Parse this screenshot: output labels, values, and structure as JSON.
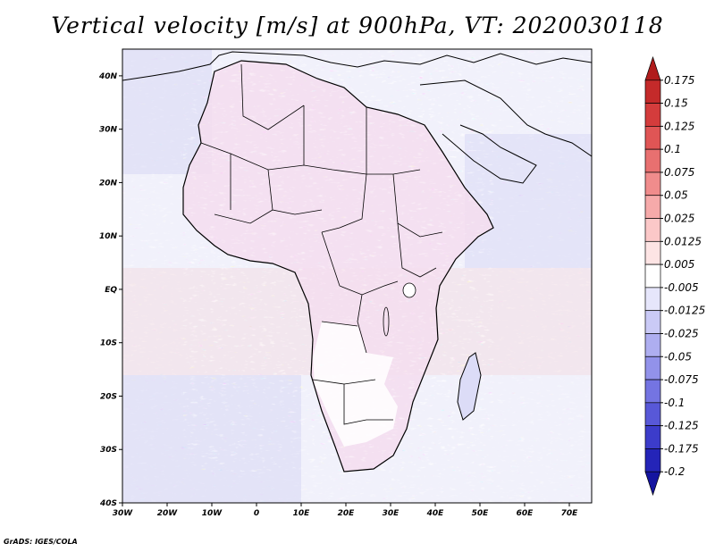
{
  "title": "Vertical velocity [m/s] at 900hPa, VT: 2020030118",
  "credit": "GrADS: IGES/COLA",
  "map": {
    "lon_range": [
      -30,
      75
    ],
    "lat_range": [
      -40,
      45
    ],
    "lat_labels": [
      "40N",
      "30N",
      "20N",
      "10N",
      "EQ",
      "10S",
      "20S",
      "30S",
      "40S"
    ],
    "lat_values": [
      40,
      30,
      20,
      10,
      0,
      -10,
      -20,
      -30,
      -40
    ],
    "lon_labels": [
      "30W",
      "20W",
      "10W",
      "0",
      "10E",
      "20E",
      "30E",
      "40E",
      "50E",
      "60E",
      "70E"
    ],
    "lon_values": [
      -30,
      -20,
      -10,
      0,
      10,
      20,
      30,
      40,
      50,
      60,
      70
    ]
  },
  "colorbar": {
    "labels": [
      "0.175",
      "0.15",
      "0.125",
      "0.1",
      "0.075",
      "0.05",
      "0.025",
      "0.0125",
      "0.005",
      "-0.005",
      "-0.0125",
      "-0.025",
      "-0.05",
      "-0.075",
      "-0.1",
      "-0.125",
      "-0.175",
      "-0.2"
    ],
    "colors": [
      "#b01c1c",
      "#c42a2a",
      "#d43c3c",
      "#e05555",
      "#e87070",
      "#f08c8c",
      "#f6aaaa",
      "#fbc8c8",
      "#fde4e4",
      "#ffffff",
      "#e6e6fb",
      "#cacaf6",
      "#aeaef0",
      "#9292ea",
      "#7474e2",
      "#5858d8",
      "#3c3cca",
      "#2424b8",
      "#1414a0"
    ]
  }
}
